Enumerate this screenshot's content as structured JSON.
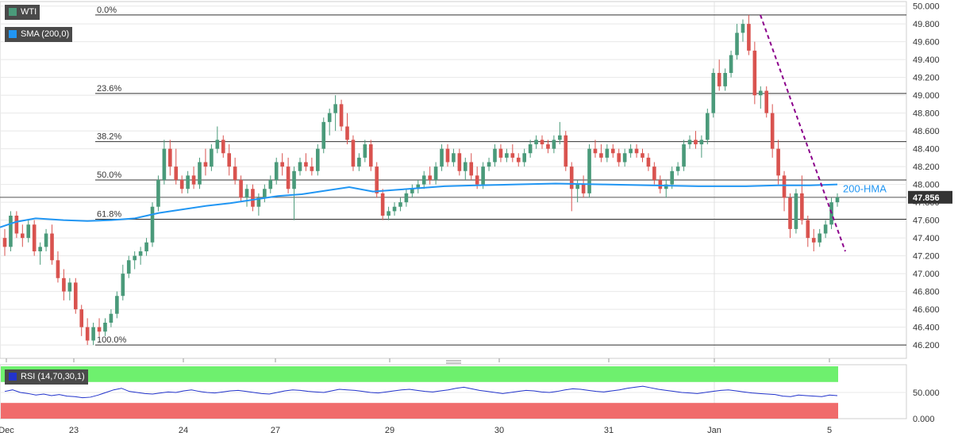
{
  "chart": {
    "instrument": "WTI",
    "indicator_label": "SMA (200,0)",
    "rsi_label": "RSI (14,70,30,1)",
    "hma_annotation": "200-HMA",
    "last_price_label": "47.856"
  },
  "colors": {
    "up": "#4a9a7a",
    "down": "#d9534f",
    "hma": "#2196f3",
    "trendline": "#8b008b",
    "rsi_line": "#2233cc",
    "rsi_overbought_zone": "#6ef06e",
    "rsi_oversold_zone": "#f06b6b",
    "grid": "#e8e8e8",
    "fib_line": "#333333",
    "label_bg": "#4a4a4a"
  },
  "chart_data": [
    {
      "type": "candlestick",
      "title": "WTI",
      "y_range": [
        46.05,
        50.05
      ],
      "y_ticks": [
        "50.000",
        "49.800",
        "49.600",
        "49.400",
        "49.200",
        "49.000",
        "48.800",
        "48.600",
        "48.400",
        "48.200",
        "48.000",
        "47.800",
        "47.600",
        "47.400",
        "47.200",
        "47.000",
        "46.800",
        "46.600",
        "46.400",
        "46.200"
      ],
      "x_labels": [
        "Dec",
        "23",
        "24",
        "27",
        "29",
        "30",
        "31",
        "Jan",
        "5"
      ],
      "last_price": 47.856,
      "fibonacci": [
        {
          "label": "0.0%",
          "value": 49.9
        },
        {
          "label": "23.6%",
          "value": 49.02
        },
        {
          "label": "38.2%",
          "value": 48.48
        },
        {
          "label": "50.0%",
          "value": 48.05
        },
        {
          "label": "61.8%",
          "value": 47.61
        },
        {
          "label": "100.0%",
          "value": 46.2
        }
      ],
      "series": [
        {
          "name": "200-HMA",
          "points": [
            [
              0,
              47.52
            ],
            [
              20,
              47.58
            ],
            [
              45,
              47.62
            ],
            [
              80,
              47.6
            ],
            [
              110,
              47.59
            ],
            [
              140,
              47.6
            ],
            [
              170,
              47.62
            ],
            [
              200,
              47.68
            ],
            [
              230,
              47.72
            ],
            [
              260,
              47.76
            ],
            [
              290,
              47.79
            ],
            [
              320,
              47.83
            ],
            [
              350,
              47.87
            ],
            [
              380,
              47.89
            ],
            [
              410,
              47.93
            ],
            [
              440,
              47.97
            ],
            [
              470,
              47.92
            ],
            [
              500,
              47.94
            ],
            [
              530,
              47.96
            ],
            [
              560,
              47.98
            ],
            [
              600,
              47.99
            ],
            [
              650,
              48.0
            ],
            [
              700,
              48.01
            ],
            [
              760,
              48.0
            ],
            [
              820,
              47.99
            ],
            [
              880,
              47.98
            ],
            [
              940,
              47.98
            ],
            [
              980,
              47.99
            ],
            [
              1020,
              47.99
            ],
            [
              1055,
              48.0
            ]
          ]
        }
      ],
      "trendline": [
        [
          49.9,
          958
        ],
        [
          47.25,
          1065
        ]
      ],
      "ohlc": [
        [
          47.4,
          47.5,
          47.2,
          47.3
        ],
        [
          47.3,
          47.7,
          47.25,
          47.65
        ],
        [
          47.65,
          47.7,
          47.4,
          47.45
        ],
        [
          47.45,
          47.55,
          47.3,
          47.4
        ],
        [
          47.4,
          47.6,
          47.35,
          47.55
        ],
        [
          47.55,
          47.6,
          47.2,
          47.25
        ],
        [
          47.25,
          47.35,
          47.1,
          47.3
        ],
        [
          47.3,
          47.5,
          47.25,
          47.45
        ],
        [
          47.45,
          47.55,
          47.1,
          47.15
        ],
        [
          47.15,
          47.25,
          46.9,
          46.95
        ],
        [
          46.95,
          47.05,
          46.7,
          46.8
        ],
        [
          46.8,
          46.95,
          46.7,
          46.9
        ],
        [
          46.9,
          46.95,
          46.55,
          46.6
        ],
        [
          46.6,
          46.65,
          46.3,
          46.4
        ],
        [
          46.4,
          46.5,
          46.2,
          46.25
        ],
        [
          46.25,
          46.45,
          46.2,
          46.4
        ],
        [
          46.4,
          46.5,
          46.3,
          46.35
        ],
        [
          46.35,
          46.5,
          46.3,
          46.45
        ],
        [
          46.45,
          46.6,
          46.4,
          46.55
        ],
        [
          46.55,
          46.8,
          46.5,
          46.75
        ],
        [
          46.75,
          47.1,
          46.7,
          47.0
        ],
        [
          47.0,
          47.2,
          46.95,
          47.15
        ],
        [
          47.15,
          47.25,
          47.05,
          47.2
        ],
        [
          47.2,
          47.3,
          47.1,
          47.25
        ],
        [
          47.25,
          47.4,
          47.2,
          47.35
        ],
        [
          47.35,
          47.8,
          47.3,
          47.75
        ],
        [
          47.75,
          48.1,
          47.7,
          48.05
        ],
        [
          48.05,
          48.5,
          48.0,
          48.4
        ],
        [
          48.4,
          48.5,
          48.1,
          48.2
        ],
        [
          48.2,
          48.4,
          48.0,
          48.05
        ],
        [
          48.05,
          48.1,
          47.9,
          47.95
        ],
        [
          47.95,
          48.15,
          47.9,
          48.1
        ],
        [
          48.1,
          48.2,
          47.95,
          48.0
        ],
        [
          48.0,
          48.3,
          47.95,
          48.25
        ],
        [
          48.25,
          48.4,
          48.1,
          48.2
        ],
        [
          48.2,
          48.45,
          48.15,
          48.4
        ],
        [
          48.4,
          48.65,
          48.35,
          48.5
        ],
        [
          48.5,
          48.55,
          48.3,
          48.35
        ],
        [
          48.35,
          48.45,
          48.1,
          48.2
        ],
        [
          48.2,
          48.3,
          48.0,
          48.05
        ],
        [
          48.05,
          48.1,
          47.8,
          47.85
        ],
        [
          47.85,
          48.0,
          47.75,
          47.95
        ],
        [
          47.95,
          48.0,
          47.7,
          47.75
        ],
        [
          47.75,
          47.9,
          47.65,
          47.85
        ],
        [
          47.85,
          48.0,
          47.8,
          47.95
        ],
        [
          47.95,
          48.1,
          47.9,
          48.05
        ],
        [
          48.05,
          48.3,
          48.0,
          48.25
        ],
        [
          48.25,
          48.35,
          48.1,
          48.2
        ],
        [
          48.2,
          48.3,
          47.9,
          47.95
        ],
        [
          47.95,
          48.2,
          47.6,
          48.15
        ],
        [
          48.15,
          48.3,
          48.1,
          48.25
        ],
        [
          48.25,
          48.35,
          48.15,
          48.2
        ],
        [
          48.2,
          48.3,
          48.1,
          48.15
        ],
        [
          48.15,
          48.45,
          48.1,
          48.4
        ],
        [
          48.4,
          48.75,
          48.35,
          48.7
        ],
        [
          48.7,
          48.85,
          48.55,
          48.8
        ],
        [
          48.8,
          49.0,
          48.6,
          48.9
        ],
        [
          48.9,
          48.95,
          48.6,
          48.65
        ],
        [
          48.65,
          48.8,
          48.45,
          48.5
        ],
        [
          48.5,
          48.55,
          48.15,
          48.2
        ],
        [
          48.2,
          48.35,
          48.15,
          48.3
        ],
        [
          48.3,
          48.5,
          48.25,
          48.45
        ],
        [
          48.45,
          48.5,
          48.15,
          48.2
        ],
        [
          48.2,
          48.25,
          47.85,
          47.9
        ],
        [
          47.9,
          47.95,
          47.6,
          47.65
        ],
        [
          47.65,
          47.75,
          47.6,
          47.7
        ],
        [
          47.7,
          47.8,
          47.65,
          47.75
        ],
        [
          47.75,
          47.85,
          47.7,
          47.8
        ],
        [
          47.8,
          47.95,
          47.75,
          47.9
        ],
        [
          47.9,
          48.0,
          47.85,
          47.95
        ],
        [
          47.95,
          48.05,
          47.9,
          48.0
        ],
        [
          48.0,
          48.15,
          47.95,
          48.1
        ],
        [
          48.1,
          48.2,
          48.0,
          48.05
        ],
        [
          48.05,
          48.25,
          48.0,
          48.2
        ],
        [
          48.2,
          48.45,
          48.15,
          48.4
        ],
        [
          48.4,
          48.45,
          48.2,
          48.25
        ],
        [
          48.25,
          48.4,
          48.2,
          48.35
        ],
        [
          48.35,
          48.4,
          48.1,
          48.15
        ],
        [
          48.15,
          48.3,
          48.05,
          48.25
        ],
        [
          48.25,
          48.35,
          48.05,
          48.1
        ],
        [
          48.1,
          48.2,
          47.95,
          48.0
        ],
        [
          48.0,
          48.25,
          47.95,
          48.2
        ],
        [
          48.2,
          48.3,
          48.15,
          48.25
        ],
        [
          48.25,
          48.45,
          48.2,
          48.4
        ],
        [
          48.4,
          48.45,
          48.25,
          48.3
        ],
        [
          48.3,
          48.4,
          48.25,
          48.35
        ],
        [
          48.35,
          48.45,
          48.25,
          48.3
        ],
        [
          48.3,
          48.35,
          48.2,
          48.25
        ],
        [
          48.25,
          48.4,
          48.2,
          48.35
        ],
        [
          48.35,
          48.5,
          48.3,
          48.45
        ],
        [
          48.45,
          48.55,
          48.4,
          48.5
        ],
        [
          48.5,
          48.55,
          48.4,
          48.45
        ],
        [
          48.45,
          48.5,
          48.35,
          48.4
        ],
        [
          48.4,
          48.55,
          48.35,
          48.5
        ],
        [
          48.5,
          48.7,
          48.45,
          48.55
        ],
        [
          48.55,
          48.6,
          48.15,
          48.2
        ],
        [
          48.2,
          48.25,
          47.7,
          47.95
        ],
        [
          47.95,
          48.05,
          47.8,
          48.0
        ],
        [
          48.0,
          48.1,
          47.85,
          47.9
        ],
        [
          47.9,
          48.45,
          47.85,
          48.4
        ],
        [
          48.4,
          48.5,
          48.3,
          48.35
        ],
        [
          48.35,
          48.45,
          48.25,
          48.3
        ],
        [
          48.3,
          48.45,
          48.25,
          48.4
        ],
        [
          48.4,
          48.45,
          48.3,
          48.35
        ],
        [
          48.35,
          48.4,
          48.2,
          48.25
        ],
        [
          48.25,
          48.4,
          48.2,
          48.35
        ],
        [
          48.35,
          48.45,
          48.3,
          48.4
        ],
        [
          48.4,
          48.45,
          48.3,
          48.35
        ],
        [
          48.35,
          48.4,
          48.25,
          48.3
        ],
        [
          48.3,
          48.35,
          48.15,
          48.2
        ],
        [
          48.2,
          48.25,
          48.0,
          48.05
        ],
        [
          48.05,
          48.1,
          47.9,
          47.95
        ],
        [
          47.95,
          48.05,
          47.85,
          48.0
        ],
        [
          48.0,
          48.2,
          47.95,
          48.15
        ],
        [
          48.15,
          48.25,
          48.1,
          48.2
        ],
        [
          48.2,
          48.5,
          48.15,
          48.45
        ],
        [
          48.45,
          48.55,
          48.4,
          48.5
        ],
        [
          48.5,
          48.6,
          48.4,
          48.45
        ],
        [
          48.45,
          48.55,
          48.3,
          48.5
        ],
        [
          48.5,
          48.85,
          48.45,
          48.8
        ],
        [
          48.8,
          49.3,
          48.75,
          49.25
        ],
        [
          49.25,
          49.4,
          49.05,
          49.1
        ],
        [
          49.1,
          49.3,
          49.05,
          49.25
        ],
        [
          49.25,
          49.5,
          49.2,
          49.45
        ],
        [
          49.45,
          49.8,
          49.4,
          49.7
        ],
        [
          49.7,
          49.85,
          49.6,
          49.8
        ],
        [
          49.8,
          49.9,
          49.45,
          49.5
        ],
        [
          49.5,
          49.6,
          48.9,
          49.0
        ],
        [
          49.0,
          49.1,
          48.85,
          49.05
        ],
        [
          49.05,
          49.1,
          48.75,
          48.8
        ],
        [
          48.8,
          48.9,
          48.3,
          48.4
        ],
        [
          48.4,
          48.5,
          48.0,
          48.1
        ],
        [
          48.1,
          48.15,
          47.7,
          47.85
        ],
        [
          47.85,
          47.9,
          47.4,
          47.5
        ],
        [
          47.5,
          47.95,
          47.45,
          47.9
        ],
        [
          47.9,
          48.1,
          47.55,
          47.6
        ],
        [
          47.6,
          47.65,
          47.3,
          47.4
        ],
        [
          47.4,
          47.5,
          47.25,
          47.35
        ],
        [
          47.35,
          47.5,
          47.3,
          47.45
        ],
        [
          47.45,
          47.6,
          47.4,
          47.55
        ],
        [
          47.55,
          47.85,
          47.5,
          47.8
        ],
        [
          47.8,
          47.9,
          47.75,
          47.856
        ]
      ]
    },
    {
      "type": "line",
      "title": "RSI (14,70,30,1)",
      "y_ticks": [
        "50.000",
        "0.000"
      ],
      "y_range": [
        0,
        100
      ],
      "overbought": 70,
      "oversold": 30,
      "series": [
        {
          "name": "RSI",
          "values": [
            52,
            55,
            50,
            48,
            45,
            47,
            44,
            46,
            43,
            42,
            40,
            41,
            45,
            50,
            55,
            58,
            52,
            50,
            48,
            47,
            49,
            51,
            50,
            53,
            55,
            52,
            50,
            49,
            51,
            53,
            54,
            52,
            50,
            48,
            47,
            50,
            53,
            55,
            54,
            52,
            51,
            50,
            53,
            56,
            55,
            54,
            52,
            50,
            49,
            51,
            53,
            55,
            56,
            54,
            52,
            51,
            53,
            55,
            58,
            60,
            57,
            54,
            52,
            50,
            48,
            50,
            52,
            54,
            53,
            51,
            50,
            52,
            55,
            57,
            56,
            54,
            52,
            51,
            53,
            55,
            58,
            60,
            62,
            59,
            56,
            54,
            52,
            50,
            49,
            48,
            50,
            52,
            54,
            55,
            53,
            51,
            49,
            48,
            47,
            46,
            43,
            42,
            45,
            44,
            43,
            42,
            45,
            44
          ]
        }
      ]
    }
  ]
}
